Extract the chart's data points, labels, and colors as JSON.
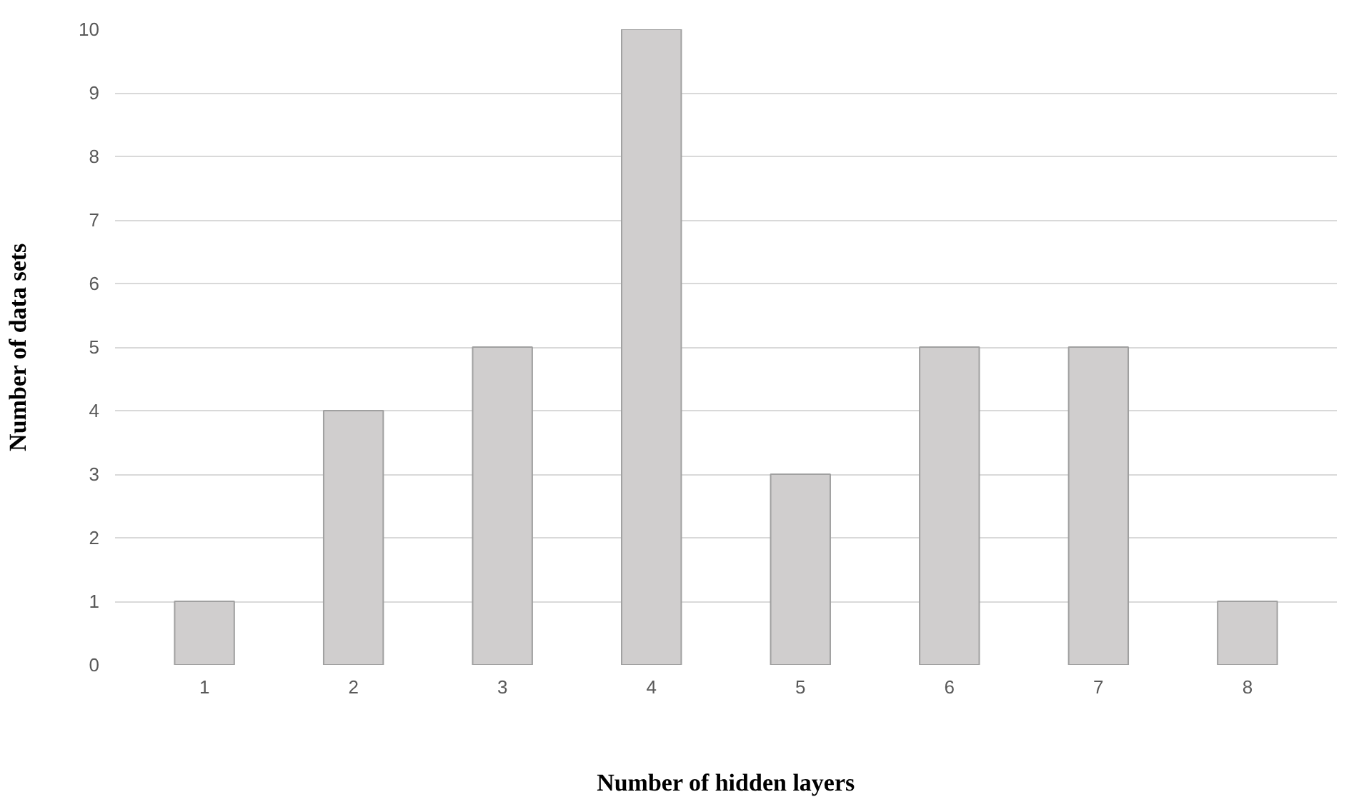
{
  "chart_data": {
    "type": "bar",
    "xlabel": "Number of hidden layers",
    "ylabel": "Number of data sets",
    "categories": [
      "1",
      "2",
      "3",
      "4",
      "5",
      "6",
      "7",
      "8"
    ],
    "values": [
      1,
      4,
      5,
      10,
      3,
      5,
      5,
      1
    ],
    "color": "#d0cece",
    "ylim": [
      0,
      10
    ],
    "yticks": [
      0,
      1,
      2,
      3,
      4,
      5,
      6,
      7,
      8,
      9,
      10
    ],
    "grid": "y"
  }
}
